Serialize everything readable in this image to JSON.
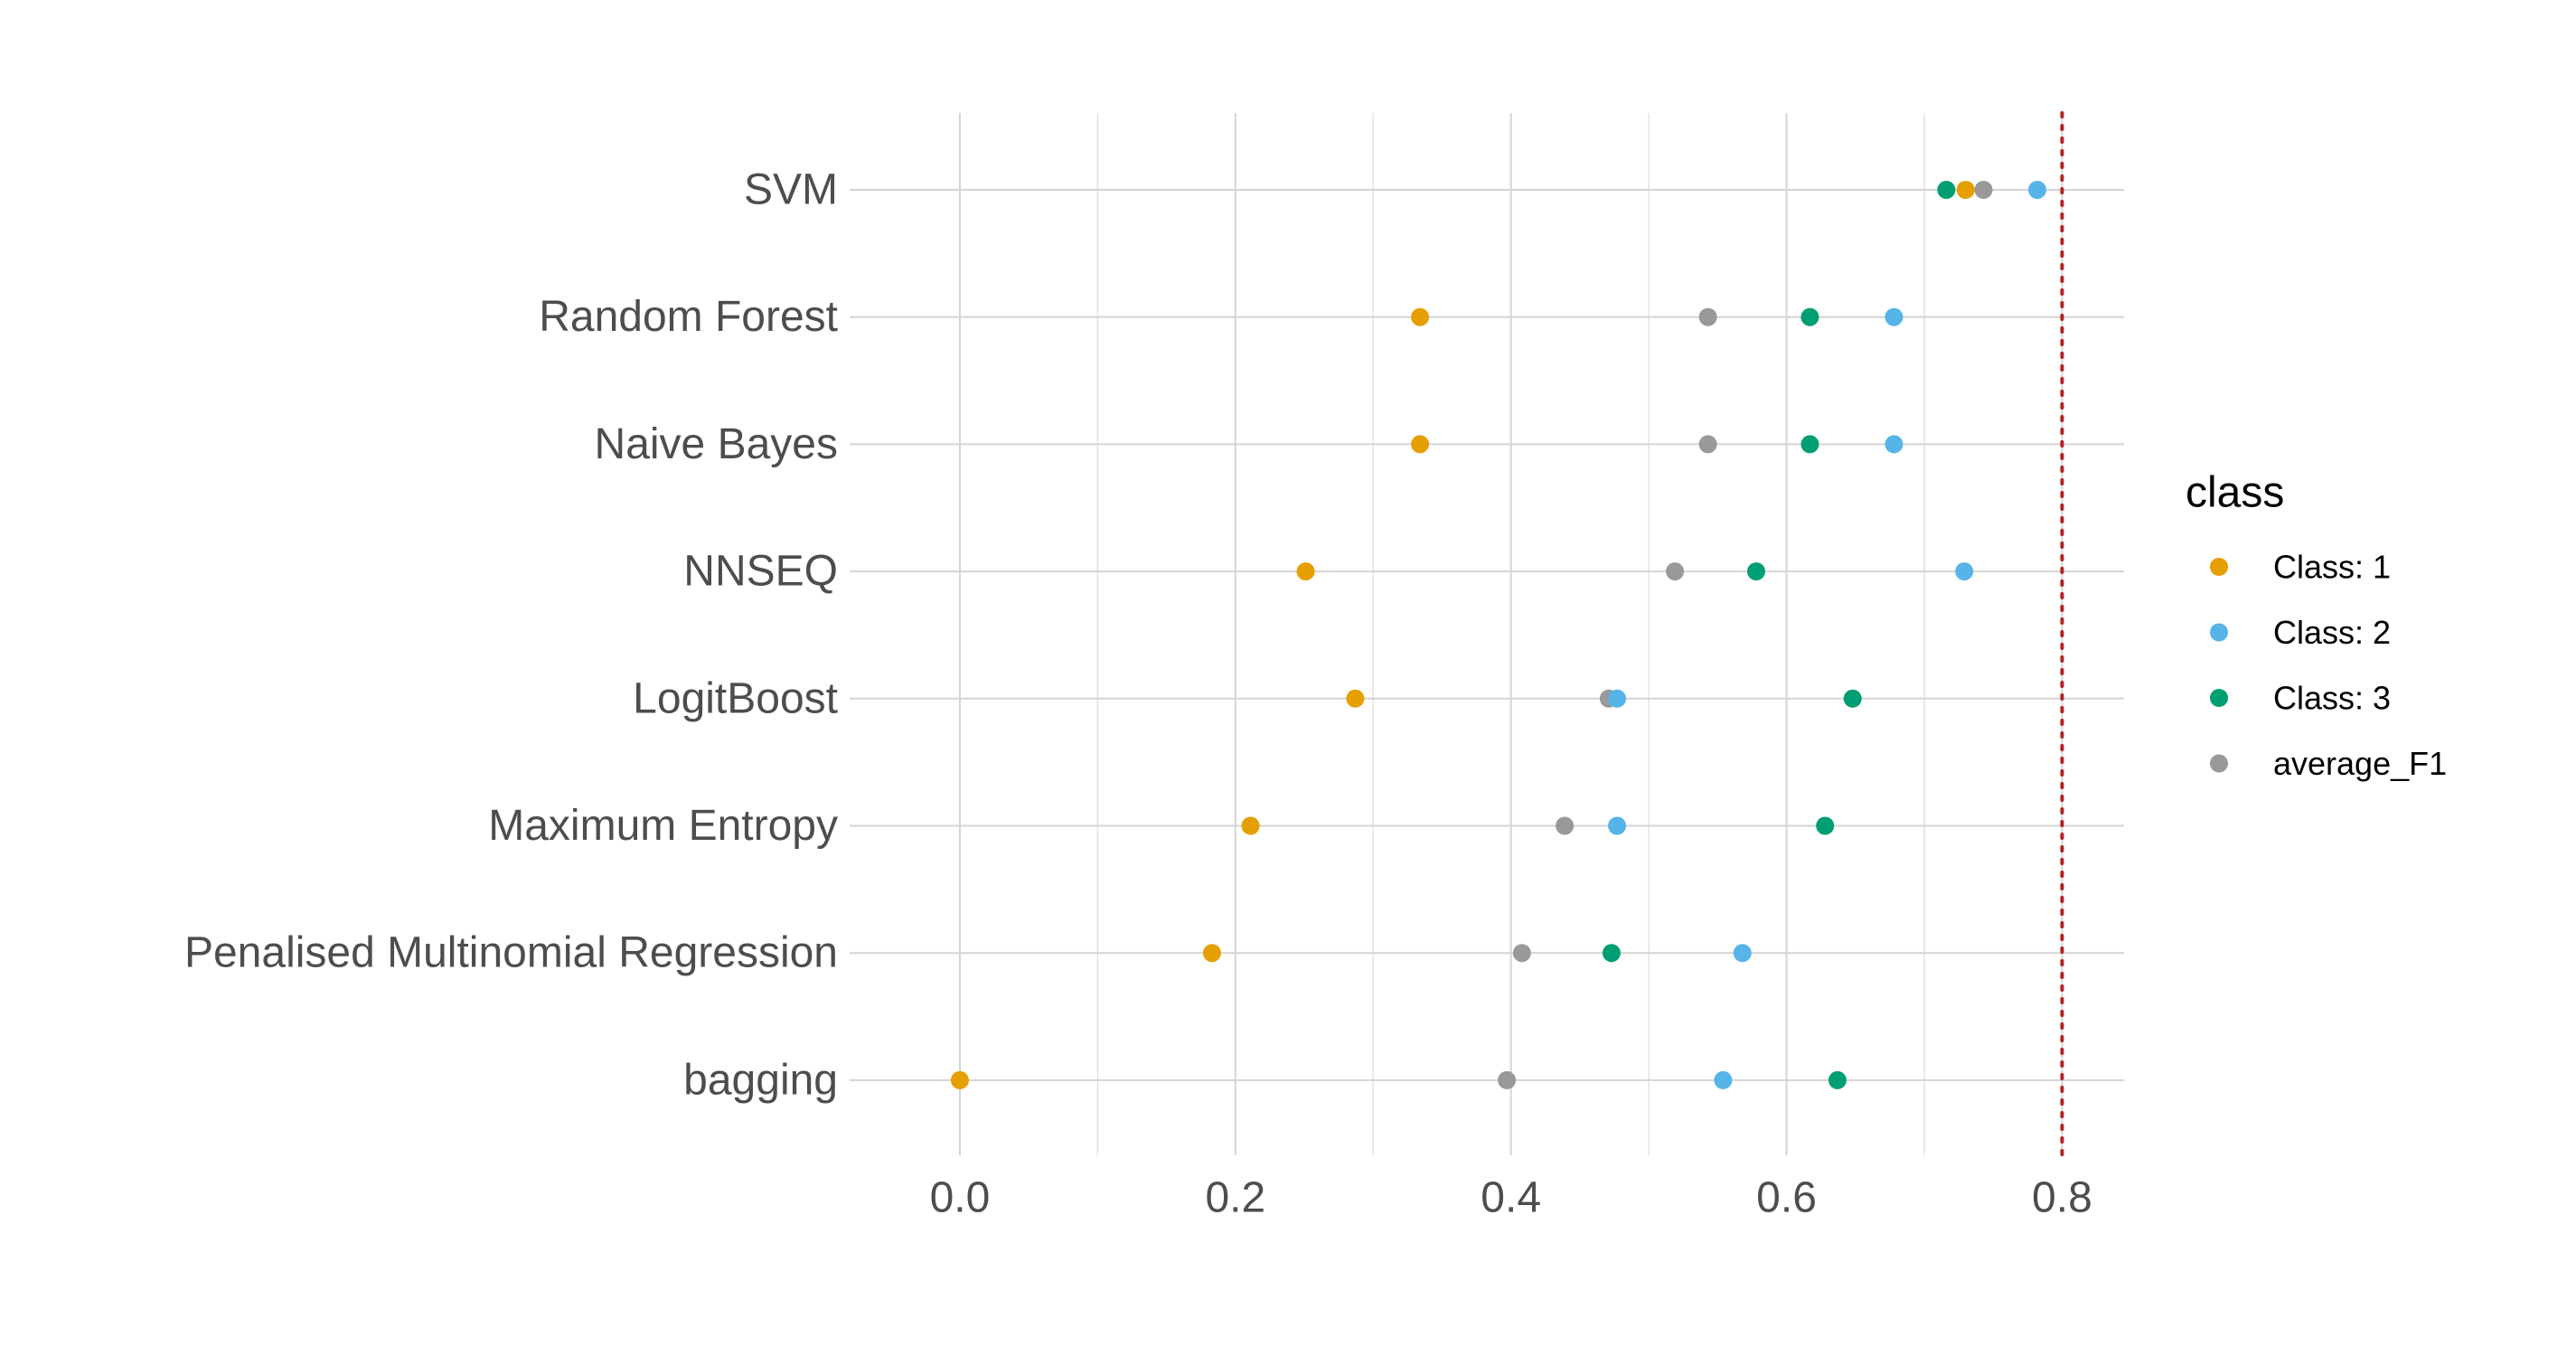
{
  "chart_data": {
    "type": "scatter",
    "categories": [
      "SVM",
      "Random Forest",
      "Naive Bayes",
      "NNSEQ",
      "LogitBoost",
      "Maximum Entropy",
      "Penalised Multinomial Regression",
      "bagging"
    ],
    "xlim": [
      -0.08,
      0.845
    ],
    "xticks": [
      0.0,
      0.2,
      0.4,
      0.6,
      0.8
    ],
    "xtick_labels": [
      "0.0",
      "0.2",
      "0.4",
      "0.6",
      "0.8"
    ],
    "reference_line": {
      "x": 0.8,
      "style": "dotted",
      "color": "#b22222"
    },
    "legend": {
      "title": "class",
      "position": "right"
    },
    "series": [
      {
        "name": "Class: 1",
        "color": "#E69F00",
        "values": [
          0.73,
          0.334,
          0.334,
          0.251,
          0.287,
          0.211,
          0.183,
          0.0
        ]
      },
      {
        "name": "Class: 2",
        "color": "#56B4E9",
        "values": [
          0.782,
          0.678,
          0.678,
          0.729,
          0.477,
          0.477,
          0.568,
          0.554
        ]
      },
      {
        "name": "Class: 3",
        "color": "#009E73",
        "values": [
          0.716,
          0.617,
          0.617,
          0.578,
          0.648,
          0.628,
          0.473,
          0.637
        ]
      },
      {
        "name": "average_F1",
        "color": "#999999",
        "values": [
          0.743,
          0.543,
          0.543,
          0.519,
          0.471,
          0.439,
          0.408,
          0.397
        ]
      }
    ],
    "grid": true
  }
}
